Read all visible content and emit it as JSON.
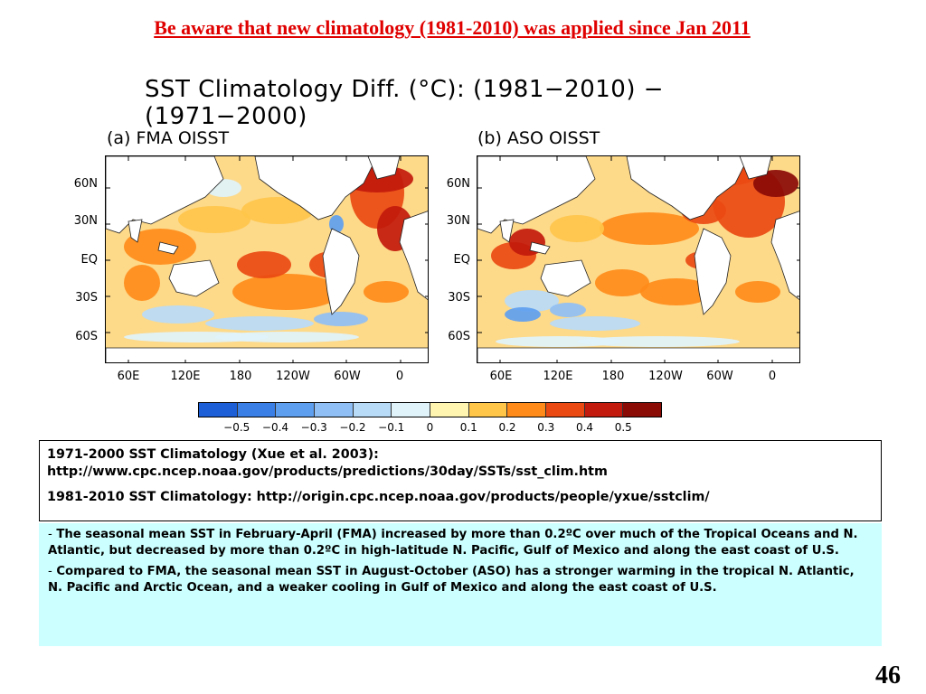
{
  "slide": {
    "title": "Be aware that new climatology (1981-2010) was applied since Jan 2011",
    "page_number": "46"
  },
  "figure": {
    "title": "SST Climatology Diff. (°C): (1981−2010) − (1971−2000)",
    "panels": [
      {
        "label": "(a) FMA OISST"
      },
      {
        "label": "(b) ASO OISST"
      }
    ],
    "lat_ticks": [
      "60N",
      "30N",
      "EQ",
      "30S",
      "60S"
    ],
    "lon_ticks": [
      "60E",
      "120E",
      "180",
      "120W",
      "60W",
      "0"
    ],
    "colorbar": {
      "labels": [
        "−0.5",
        "−0.4",
        "−0.3",
        "−0.2",
        "−0.1",
        "0",
        "0.1",
        "0.2",
        "0.3",
        "0.4",
        "0.5"
      ],
      "colors": [
        "#1c5fd6",
        "#3a7fe6",
        "#5f9ff0",
        "#8fbff5",
        "#b8dbf7",
        "#e0f3fb",
        "#fff4b0",
        "#ffc64a",
        "#ff8c1a",
        "#ea4a12",
        "#c21a0c",
        "#8a0a06"
      ]
    },
    "land_color": "#ffffff",
    "ocean_base_color": "#fdd98a"
  },
  "references": {
    "line1": "1971-2000 SST Climatology (Xue et al. 2003):",
    "line2": "http://www.cpc.ncep.noaa.gov/products/predictions/30day/SSTs/sst_clim.htm",
    "line3": "1981-2010 SST Climatology: http://origin.cpc.ncep.noaa.gov/products/people/yxue/sstclim/"
  },
  "notes": {
    "bullet_char": "-",
    "bullet1": "The seasonal mean SST in February-April (FMA) increased by more than 0.2ºC over much of the Tropical Oceans and N. Atlantic, but decreased by more than 0.2ºC in high-latitude N. Pacific, Gulf of Mexico and along the east coast of U.S.",
    "bullet2": "Compared to FMA, the seasonal mean SST in August-October (ASO) has a stronger warming in the tropical N. Atlantic, N. Pacific and Arctic Ocean, and a weaker cooling in Gulf of Mexico and along the east coast of U.S."
  }
}
